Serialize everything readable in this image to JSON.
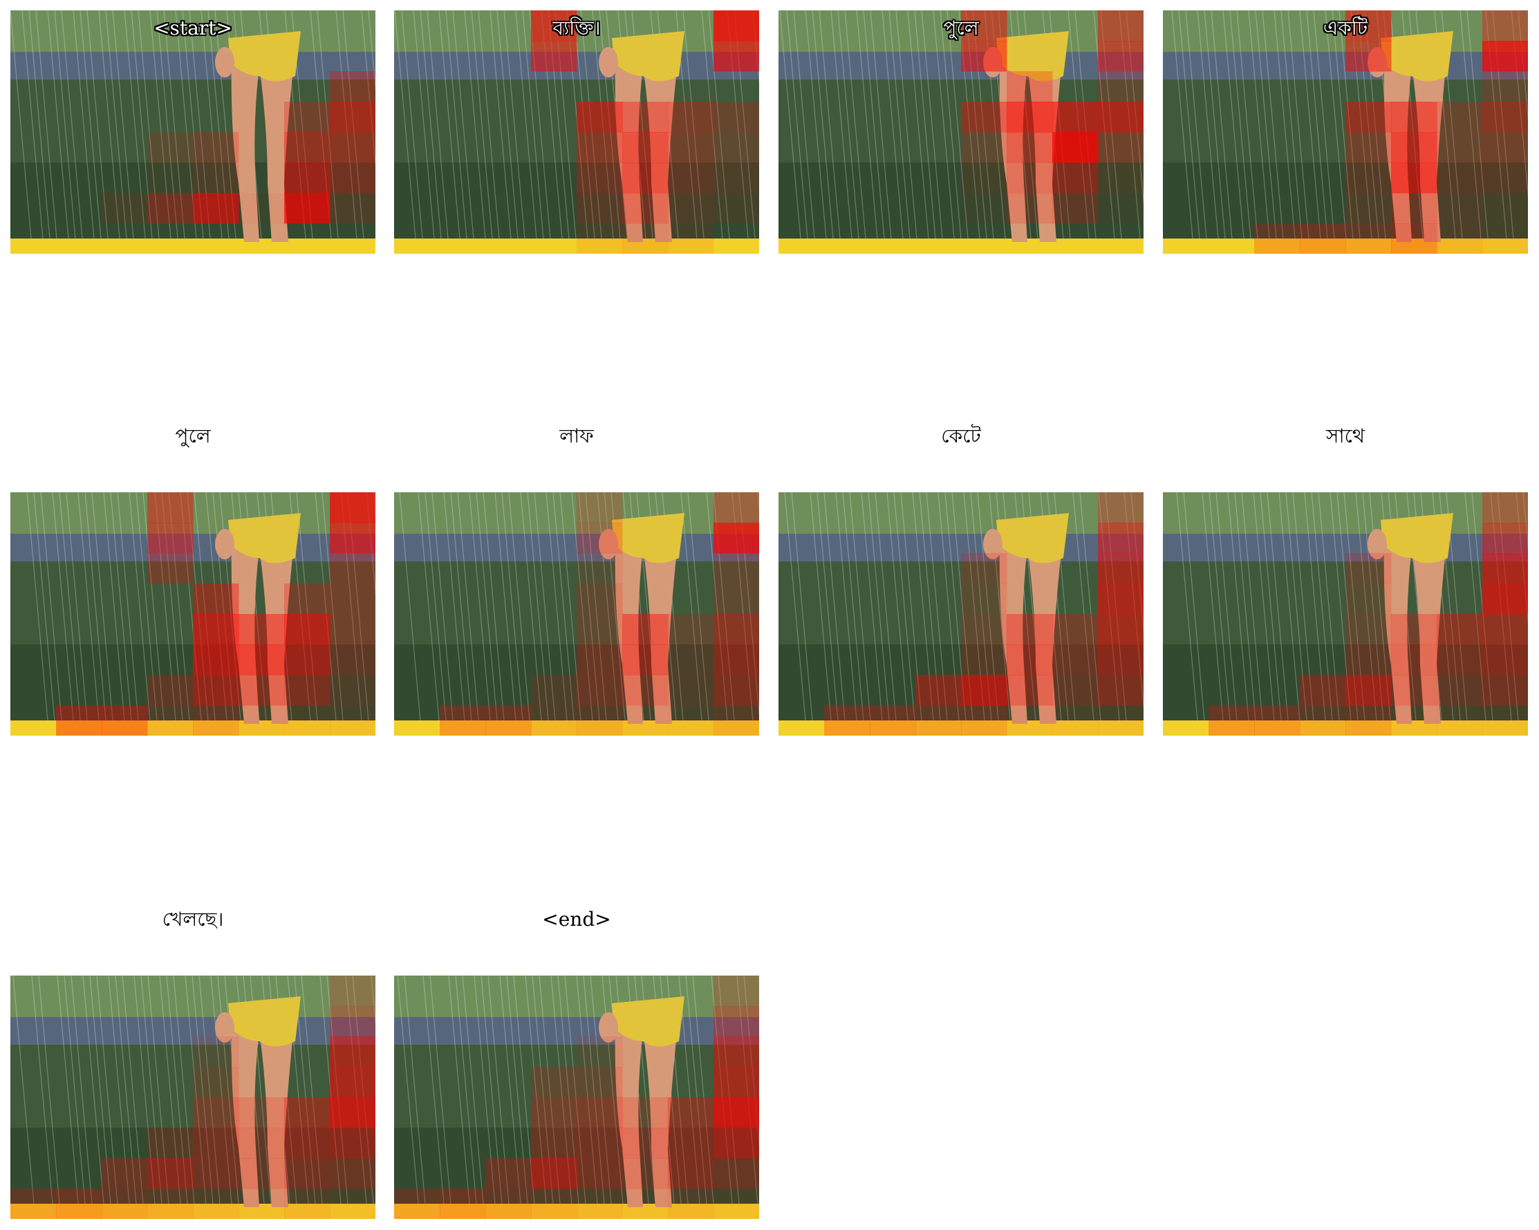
{
  "panels": [
    {
      "word": "<start>",
      "heat": [
        [
          0,
          0,
          0,
          0,
          0,
          0,
          0,
          0
        ],
        [
          0,
          0,
          0,
          0,
          0,
          0,
          0,
          0
        ],
        [
          0,
          0,
          0,
          0,
          0,
          0,
          0,
          0.35
        ],
        [
          0,
          0,
          0,
          0,
          0,
          0,
          0.3,
          0.6
        ],
        [
          0,
          0,
          0,
          0.15,
          0.25,
          0,
          0.5,
          0.45
        ],
        [
          0,
          0,
          0,
          0.05,
          0.15,
          0,
          0.6,
          0.35
        ],
        [
          0,
          0,
          0.1,
          0.35,
          0.7,
          0.05,
          0.85,
          0.15
        ],
        [
          0,
          0,
          0,
          0,
          0,
          0,
          0,
          0
        ]
      ]
    },
    {
      "word": "ব্যক্তি।",
      "heat": [
        [
          0,
          0,
          0,
          0.7,
          0,
          0,
          0,
          0.9
        ],
        [
          0,
          0,
          0,
          0.6,
          0,
          0,
          0,
          0.7
        ],
        [
          0,
          0,
          0,
          0,
          0,
          0,
          0,
          0
        ],
        [
          0,
          0,
          0,
          0,
          0.6,
          0.4,
          0.35,
          0.25
        ],
        [
          0,
          0,
          0,
          0,
          0.4,
          0.55,
          0.3,
          0.2
        ],
        [
          0,
          0,
          0,
          0,
          0.3,
          0.55,
          0.25,
          0.15
        ],
        [
          0,
          0,
          0,
          0,
          0.2,
          0.35,
          0.15,
          0.1
        ],
        [
          0,
          0,
          0,
          0,
          0.1,
          0.15,
          0.1,
          0
        ]
      ]
    },
    {
      "word": "পুলে",
      "heat": [
        [
          0,
          0,
          0,
          0,
          0.55,
          0,
          0,
          0.5
        ],
        [
          0,
          0,
          0,
          0,
          0.6,
          0,
          0,
          0.55
        ],
        [
          0,
          0,
          0,
          0,
          0,
          0.3,
          0,
          0.2
        ],
        [
          0,
          0,
          0,
          0,
          0.45,
          0.7,
          0.65,
          0.65
        ],
        [
          0,
          0,
          0,
          0,
          0.2,
          0.45,
          0.95,
          0.3
        ],
        [
          0,
          0,
          0,
          0,
          0.1,
          0.3,
          0.45,
          0.1
        ],
        [
          0,
          0,
          0,
          0,
          0.05,
          0.2,
          0.25,
          0.05
        ],
        [
          0,
          0,
          0,
          0,
          0,
          0,
          0,
          0
        ]
      ]
    },
    {
      "word": "একটি",
      "heat": [
        [
          0,
          0,
          0,
          0,
          0.6,
          0,
          0,
          0.4
        ],
        [
          0,
          0,
          0,
          0,
          0.55,
          0,
          0,
          0.85
        ],
        [
          0,
          0,
          0,
          0,
          0,
          0,
          0,
          0.2
        ],
        [
          0,
          0,
          0,
          0,
          0.5,
          0.55,
          0.25,
          0.45
        ],
        [
          0,
          0,
          0,
          0,
          0.3,
          0.65,
          0.25,
          0.3
        ],
        [
          0,
          0,
          0,
          0,
          0.2,
          0.7,
          0.2,
          0.2
        ],
        [
          0,
          0,
          0,
          0,
          0.15,
          0.3,
          0.15,
          0.1
        ],
        [
          0,
          0,
          0.25,
          0.3,
          0.25,
          0.35,
          0.15,
          0.1
        ]
      ]
    },
    {
      "word": "পুলে",
      "heat": [
        [
          0,
          0,
          0,
          0.5,
          0,
          0,
          0,
          0.85
        ],
        [
          0,
          0,
          0,
          0.5,
          0,
          0,
          0,
          0.7
        ],
        [
          0,
          0,
          0,
          0.3,
          0,
          0,
          0,
          0.3
        ],
        [
          0,
          0,
          0,
          0,
          0.45,
          0,
          0.3,
          0.3
        ],
        [
          0,
          0,
          0,
          0,
          0.7,
          0.5,
          0.7,
          0.3
        ],
        [
          0,
          0,
          0,
          0,
          0.7,
          0.65,
          0.6,
          0.25
        ],
        [
          0,
          0,
          0,
          0.25,
          0.55,
          0.4,
          0.4,
          0.15
        ],
        [
          0,
          0.45,
          0.45,
          0.15,
          0.25,
          0.1,
          0.1,
          0.1
        ]
      ]
    },
    {
      "word": "লাফ",
      "heat": [
        [
          0,
          0,
          0,
          0,
          0.2,
          0,
          0,
          0.35
        ],
        [
          0,
          0,
          0,
          0,
          0.25,
          0,
          0,
          0.85
        ],
        [
          0,
          0,
          0,
          0,
          0.1,
          0,
          0,
          0.2
        ],
        [
          0,
          0,
          0,
          0,
          0.2,
          0,
          0,
          0.2
        ],
        [
          0,
          0,
          0,
          0,
          0.2,
          0.5,
          0.2,
          0.45
        ],
        [
          0,
          0,
          0,
          0,
          0.3,
          0.5,
          0.15,
          0.45
        ],
        [
          0,
          0,
          0,
          0.15,
          0.3,
          0.3,
          0.15,
          0.4
        ],
        [
          0,
          0.3,
          0.3,
          0.15,
          0.2,
          0.1,
          0.1,
          0.2
        ]
      ]
    },
    {
      "word": "কেটে",
      "heat": [
        [
          0,
          0,
          0,
          0,
          0,
          0,
          0,
          0.3
        ],
        [
          0,
          0,
          0,
          0,
          0,
          0,
          0,
          0.55
        ],
        [
          0,
          0,
          0,
          0,
          0.2,
          0,
          0,
          0.6
        ],
        [
          0,
          0,
          0,
          0,
          0.15,
          0,
          0,
          0.65
        ],
        [
          0,
          0,
          0,
          0,
          0.2,
          0.4,
          0.3,
          0.6
        ],
        [
          0,
          0,
          0,
          0,
          0.2,
          0.45,
          0.3,
          0.5
        ],
        [
          0,
          0,
          0,
          0.45,
          0.7,
          0.4,
          0.25,
          0.4
        ],
        [
          0,
          0.3,
          0.3,
          0.25,
          0.25,
          0.1,
          0.1,
          0.1
        ]
      ]
    },
    {
      "word": "সাথে",
      "heat": [
        [
          0,
          0,
          0,
          0,
          0,
          0,
          0,
          0.35
        ],
        [
          0,
          0,
          0,
          0,
          0,
          0,
          0,
          0.5
        ],
        [
          0,
          0,
          0,
          0,
          0.2,
          0,
          0,
          0.65
        ],
        [
          0,
          0,
          0,
          0,
          0.15,
          0,
          0,
          0.75
        ],
        [
          0,
          0,
          0,
          0,
          0.2,
          0.3,
          0.45,
          0.5
        ],
        [
          0,
          0,
          0,
          0,
          0.25,
          0.35,
          0.35,
          0.45
        ],
        [
          0,
          0,
          0,
          0.35,
          0.6,
          0.3,
          0.25,
          0.35
        ],
        [
          0,
          0.3,
          0.3,
          0.2,
          0.25,
          0.1,
          0.1,
          0.1
        ]
      ]
    },
    {
      "word": "খেলছে।",
      "heat": [
        [
          0,
          0,
          0,
          0,
          0,
          0,
          0,
          0.2
        ],
        [
          0,
          0,
          0,
          0,
          0,
          0,
          0,
          0.3
        ],
        [
          0,
          0,
          0,
          0,
          0.1,
          0,
          0,
          0.6
        ],
        [
          0,
          0,
          0,
          0,
          0.15,
          0,
          0,
          0.65
        ],
        [
          0,
          0,
          0,
          0,
          0.3,
          0.2,
          0.45,
          0.8
        ],
        [
          0,
          0,
          0,
          0.2,
          0.35,
          0.25,
          0.45,
          0.5
        ],
        [
          0,
          0,
          0.3,
          0.5,
          0.35,
          0.25,
          0.35,
          0.3
        ],
        [
          0.25,
          0.3,
          0.25,
          0.2,
          0.15,
          0.1,
          0.15,
          0.1
        ]
      ]
    },
    {
      "word": "<end>",
      "heat": [
        [
          0,
          0,
          0,
          0,
          0,
          0,
          0,
          0.2
        ],
        [
          0,
          0,
          0,
          0,
          0,
          0,
          0,
          0.35
        ],
        [
          0,
          0,
          0,
          0,
          0.1,
          0,
          0,
          0.55
        ],
        [
          0,
          0,
          0,
          0.2,
          0.2,
          0,
          0,
          0.6
        ],
        [
          0,
          0,
          0,
          0.3,
          0.35,
          0.2,
          0.4,
          0.85
        ],
        [
          0,
          0,
          0,
          0.3,
          0.35,
          0.3,
          0.4,
          0.6
        ],
        [
          0,
          0,
          0.3,
          0.6,
          0.35,
          0.25,
          0.4,
          0.3
        ],
        [
          0.25,
          0.3,
          0.25,
          0.2,
          0.15,
          0.1,
          0.15,
          0.1
        ]
      ]
    }
  ],
  "colors": {
    "heat": "#ff0000",
    "sky_grass": "#6e8f5a",
    "pavement": "#5a6a8a",
    "lawn": "#3e5a3a",
    "lawn_dark": "#2c4028",
    "slide": "#f2d22a",
    "skin": "#d79a78",
    "suit": "#e2c43a"
  }
}
